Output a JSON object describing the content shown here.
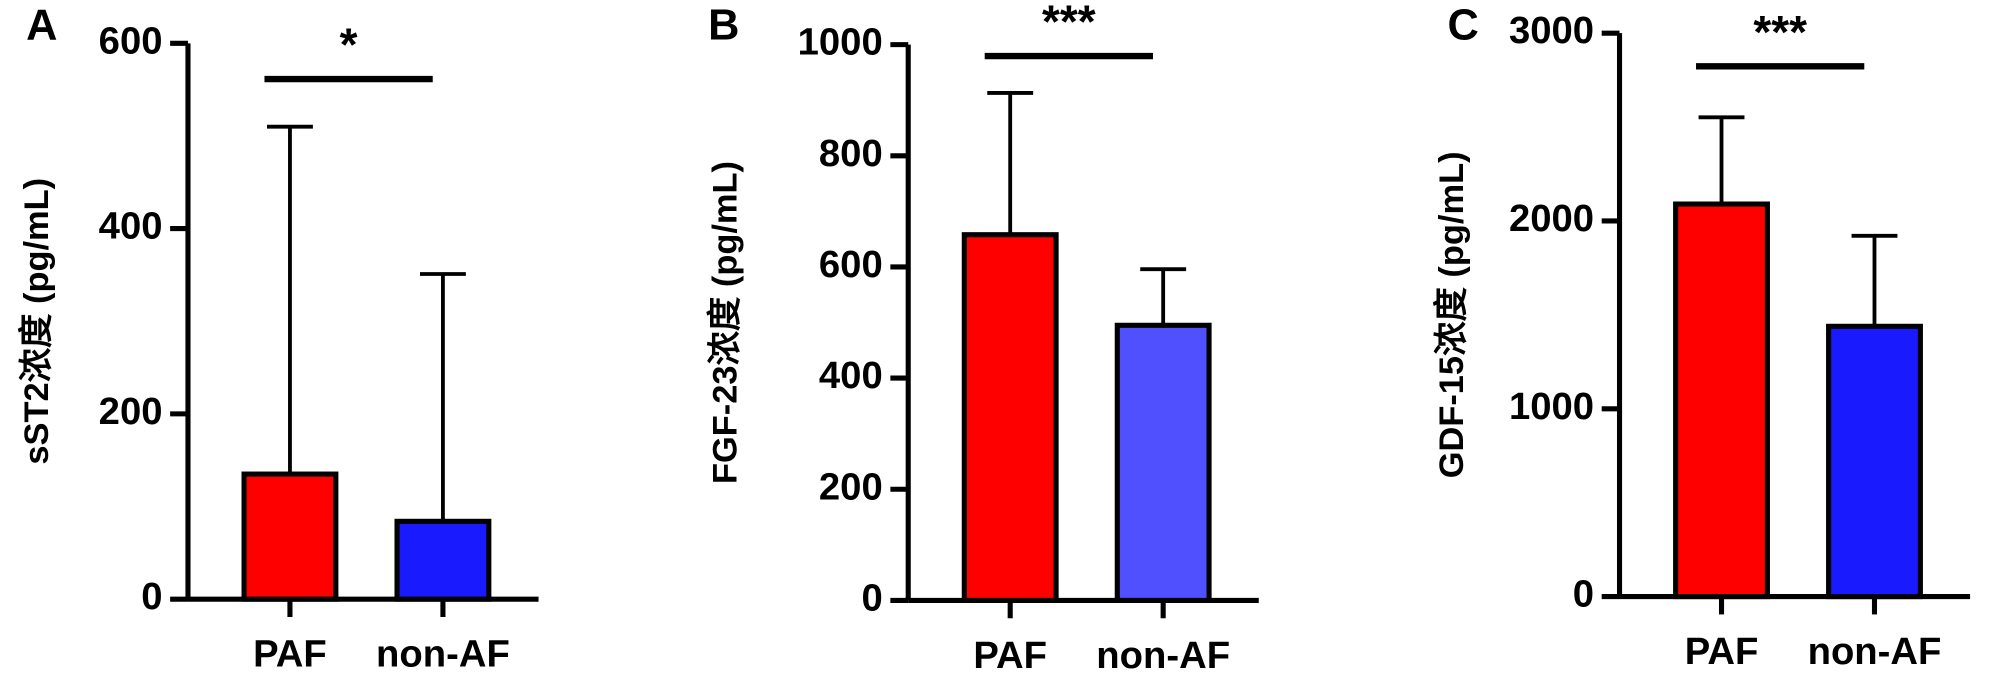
{
  "chart_data": [
    {
      "type": "bar",
      "panel": "A",
      "ylabel": "sST2浓度 (pg/mL)",
      "categories": [
        "PAF",
        "non-AF"
      ],
      "values": [
        135,
        84
      ],
      "errors": [
        375,
        267
      ],
      "colors": [
        "#ff0000",
        "#1a1aff"
      ],
      "ylim": [
        0,
        600
      ],
      "yticks": [
        0,
        200,
        400,
        600
      ],
      "annotation": "*"
    },
    {
      "type": "bar",
      "panel": "B",
      "ylabel": "FGF-23浓度 (pg/mL)",
      "categories": [
        "PAF",
        "non-AF"
      ],
      "values": [
        658,
        495
      ],
      "errors": [
        255,
        101
      ],
      "colors": [
        "#ff0000",
        "#5050ff"
      ],
      "ylim": [
        0,
        1000
      ],
      "yticks": [
        0,
        200,
        400,
        600,
        800,
        1000
      ],
      "annotation": "***"
    },
    {
      "type": "bar",
      "panel": "C",
      "ylabel": "GDF-15浓度 (pg/mL)",
      "categories": [
        "PAF",
        "non-AF"
      ],
      "values": [
        2090,
        1439
      ],
      "errors": [
        462,
        482
      ],
      "colors": [
        "#ff0000",
        "#1a1aff"
      ],
      "ylim": [
        0,
        3000
      ],
      "yticks": [
        0,
        1000,
        2000,
        3000
      ],
      "annotation": "***"
    }
  ]
}
